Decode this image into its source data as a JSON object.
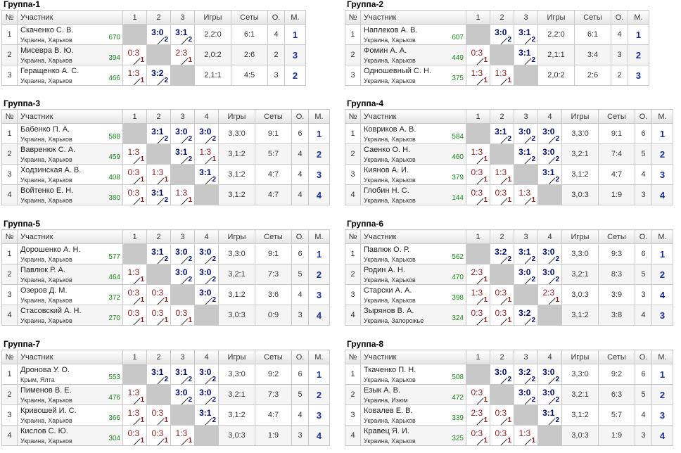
{
  "headers": {
    "num": "№",
    "participant": "Участник",
    "games": "Игры",
    "sets": "Сеты",
    "points": "О.",
    "place": "М."
  },
  "groups": [
    {
      "title": "Группа-1",
      "cols": [
        "1",
        "2",
        "3"
      ],
      "rows": [
        {
          "num": "1",
          "name": "Скаченко С. В.",
          "city": "Украина, Харьков",
          "rating": "670",
          "results": [
            null,
            {
              "score": "3:0",
              "res": "win",
              "pos": "2"
            },
            {
              "score": "3:1",
              "res": "win",
              "pos": "2"
            }
          ],
          "games": "2,2:0",
          "sets": "6:1",
          "points": "4",
          "place": "1"
        },
        {
          "num": "2",
          "name": "Мисевра В. Ю.",
          "city": "Украина, Харьков",
          "rating": "394",
          "results": [
            {
              "score": "0:3",
              "res": "loss",
              "pos": "1"
            },
            null,
            {
              "score": "2:3",
              "res": "loss",
              "pos": "1"
            }
          ],
          "games": "2,0:2",
          "sets": "2:6",
          "points": "2",
          "place": "3"
        },
        {
          "num": "3",
          "name": "Геращенко А. С.",
          "city": "Украина, Харьков",
          "rating": "466",
          "results": [
            {
              "score": "1:3",
              "res": "loss",
              "pos": "1"
            },
            {
              "score": "3:2",
              "res": "win",
              "pos": "2"
            },
            null
          ],
          "games": "2,1:1",
          "sets": "4:5",
          "points": "3",
          "place": "2"
        }
      ]
    },
    {
      "title": "Группа-2",
      "cols": [
        "1",
        "2",
        "3"
      ],
      "rows": [
        {
          "num": "1",
          "name": "Наплеков А. В.",
          "city": "Украина, Харьков",
          "rating": "607",
          "results": [
            null,
            {
              "score": "3:0",
              "res": "win",
              "pos": "2"
            },
            {
              "score": "3:1",
              "res": "win",
              "pos": "2"
            }
          ],
          "games": "2,2:0",
          "sets": "6:1",
          "points": "4",
          "place": "1"
        },
        {
          "num": "2",
          "name": "Фомин А. А.",
          "city": "Украина, Харьков",
          "rating": "449",
          "results": [
            {
              "score": "0:3",
              "res": "loss",
              "pos": "1"
            },
            null,
            {
              "score": "3:1",
              "res": "win",
              "pos": "2"
            }
          ],
          "games": "2,1:1",
          "sets": "3:4",
          "points": "3",
          "place": "2"
        },
        {
          "num": "3",
          "name": "Одношевный С. Н.",
          "city": "Украина, Харьков",
          "rating": "375",
          "results": [
            {
              "score": "1:3",
              "res": "loss",
              "pos": "1"
            },
            {
              "score": "1:3",
              "res": "loss",
              "pos": "1"
            },
            null
          ],
          "games": "2,0:2",
          "sets": "2:6",
          "points": "2",
          "place": "3"
        }
      ]
    },
    {
      "title": "Группа-3",
      "cols": [
        "1",
        "2",
        "3",
        "4"
      ],
      "rows": [
        {
          "num": "1",
          "name": "Бабенко П. А.",
          "city": "Украина, Харьков",
          "rating": "588",
          "results": [
            null,
            {
              "score": "3:1",
              "res": "win",
              "pos": "2"
            },
            {
              "score": "3:0",
              "res": "win",
              "pos": "2"
            },
            {
              "score": "3:0",
              "res": "win",
              "pos": "2"
            }
          ],
          "games": "3,3:0",
          "sets": "9:1",
          "points": "6",
          "place": "1"
        },
        {
          "num": "2",
          "name": "Вавренюк С. А.",
          "city": "Украина, Харьков",
          "rating": "459",
          "results": [
            {
              "score": "1:3",
              "res": "loss",
              "pos": "1"
            },
            null,
            {
              "score": "3:1",
              "res": "win",
              "pos": "2"
            },
            {
              "score": "1:3",
              "res": "loss",
              "pos": "1"
            }
          ],
          "games": "3,1:2",
          "sets": "5:7",
          "points": "4",
          "place": "2"
        },
        {
          "num": "3",
          "name": "Ходзинская А. В.",
          "city": "Украина, Харьков",
          "rating": "408",
          "results": [
            {
              "score": "0:3",
              "res": "loss",
              "pos": "1"
            },
            {
              "score": "1:3",
              "res": "loss",
              "pos": "1"
            },
            null,
            {
              "score": "3:1",
              "res": "win",
              "pos": "2"
            }
          ],
          "games": "3,1:2",
          "sets": "4:7",
          "points": "4",
          "place": "3"
        },
        {
          "num": "4",
          "name": "Войтенко Е. Н.",
          "city": "Украина, Харьков",
          "rating": "380",
          "results": [
            {
              "score": "0:3",
              "res": "loss",
              "pos": "1"
            },
            {
              "score": "3:1",
              "res": "win",
              "pos": "2"
            },
            {
              "score": "1:3",
              "res": "loss",
              "pos": "1"
            },
            null
          ],
          "games": "3,1:2",
          "sets": "4:7",
          "points": "4",
          "place": "4"
        }
      ]
    },
    {
      "title": "Группа-4",
      "cols": [
        "1",
        "2",
        "3",
        "4"
      ],
      "rows": [
        {
          "num": "1",
          "name": "Ковриков А. В.",
          "city": "Украина, Харьков",
          "rating": "584",
          "results": [
            null,
            {
              "score": "3:1",
              "res": "win",
              "pos": "2"
            },
            {
              "score": "3:0",
              "res": "win",
              "pos": "2"
            },
            {
              "score": "3:0",
              "res": "win",
              "pos": "2"
            }
          ],
          "games": "3,3:0",
          "sets": "9:1",
          "points": "6",
          "place": "1"
        },
        {
          "num": "2",
          "name": "Саенко О. Н.",
          "city": "Украина, Харьков",
          "rating": "460",
          "results": [
            {
              "score": "1:3",
              "res": "loss",
              "pos": "1"
            },
            null,
            {
              "score": "3:1",
              "res": "win",
              "pos": "2"
            },
            {
              "score": "3:0",
              "res": "win",
              "pos": "2"
            }
          ],
          "games": "3,2:1",
          "sets": "7:4",
          "points": "5",
          "place": "2"
        },
        {
          "num": "3",
          "name": "Киянов А. И.",
          "city": "Украина, Харьков",
          "rating": "379",
          "results": [
            {
              "score": "0:3",
              "res": "loss",
              "pos": "1"
            },
            {
              "score": "1:3",
              "res": "loss",
              "pos": "1"
            },
            null,
            {
              "score": "3:1",
              "res": "win",
              "pos": "2"
            }
          ],
          "games": "3,1:2",
          "sets": "4:7",
          "points": "4",
          "place": "3"
        },
        {
          "num": "4",
          "name": "Глобин Н. С.",
          "city": "Украина, Харьков",
          "rating": "144",
          "results": [
            {
              "score": "0:3",
              "res": "loss",
              "pos": "1"
            },
            {
              "score": "0:3",
              "res": "loss",
              "pos": "1"
            },
            {
              "score": "1:3",
              "res": "loss",
              "pos": "1"
            },
            null
          ],
          "games": "3,0:3",
          "sets": "1:9",
          "points": "3",
          "place": "4"
        }
      ]
    },
    {
      "title": "Группа-5",
      "cols": [
        "1",
        "2",
        "3",
        "4"
      ],
      "rows": [
        {
          "num": "1",
          "name": "Дорошенко А. Н.",
          "city": "Украина, Харьков",
          "rating": "577",
          "results": [
            null,
            {
              "score": "3:1",
              "res": "win",
              "pos": "2"
            },
            {
              "score": "3:0",
              "res": "win",
              "pos": "2"
            },
            {
              "score": "3:0",
              "res": "win",
              "pos": "2"
            }
          ],
          "games": "3,3:0",
          "sets": "9:1",
          "points": "6",
          "place": "1"
        },
        {
          "num": "2",
          "name": "Павлюк Р. А.",
          "city": "Украина, Харьков",
          "rating": "464",
          "results": [
            {
              "score": "1:3",
              "res": "loss",
              "pos": "1"
            },
            null,
            {
              "score": "3:0",
              "res": "win",
              "pos": "2"
            },
            {
              "score": "3:0",
              "res": "win",
              "pos": "2"
            }
          ],
          "games": "3,2:1",
          "sets": "7:3",
          "points": "5",
          "place": "2"
        },
        {
          "num": "3",
          "name": "Озеров Д. М.",
          "city": "Украина, Харьков",
          "rating": "372",
          "results": [
            {
              "score": "0:3",
              "res": "loss",
              "pos": "1"
            },
            {
              "score": "0:3",
              "res": "loss",
              "pos": "1"
            },
            null,
            {
              "score": "3:0",
              "res": "win",
              "pos": "2"
            }
          ],
          "games": "3,1:2",
          "sets": "3:6",
          "points": "4",
          "place": "3"
        },
        {
          "num": "4",
          "name": "Стасовский А. Н.",
          "city": "Украина, Харьков",
          "rating": "270",
          "results": [
            {
              "score": "0:3",
              "res": "loss",
              "pos": "1"
            },
            {
              "score": "0:3",
              "res": "loss",
              "pos": "1"
            },
            {
              "score": "0:3",
              "res": "loss",
              "pos": "1"
            },
            null
          ],
          "games": "3,0:3",
          "sets": "0:9",
          "points": "3",
          "place": "4"
        }
      ]
    },
    {
      "title": "Группа-6",
      "cols": [
        "1",
        "2",
        "3",
        "4"
      ],
      "rows": [
        {
          "num": "1",
          "name": "Павлюк О. Р.",
          "city": "Украина, Харьков",
          "rating": "562",
          "results": [
            null,
            {
              "score": "3:2",
              "res": "win",
              "pos": "2"
            },
            {
              "score": "3:1",
              "res": "win",
              "pos": "2"
            },
            {
              "score": "3:0",
              "res": "win",
              "pos": "2"
            }
          ],
          "games": "3,3:0",
          "sets": "9:3",
          "points": "6",
          "place": "1"
        },
        {
          "num": "2",
          "name": "Родин А. Н.",
          "city": "Украина, Харьков",
          "rating": "470",
          "results": [
            {
              "score": "2:3",
              "res": "loss",
              "pos": "1"
            },
            null,
            {
              "score": "3:0",
              "res": "win",
              "pos": "2"
            },
            {
              "score": "3:0",
              "res": "win",
              "pos": "2"
            }
          ],
          "games": "3,2:1",
          "sets": "8:3",
          "points": "5",
          "place": "2"
        },
        {
          "num": "3",
          "name": "Старски А. А.",
          "city": "Украина, Харьков",
          "rating": "398",
          "results": [
            {
              "score": "1:3",
              "res": "loss",
              "pos": "1"
            },
            {
              "score": "0:3",
              "res": "loss",
              "pos": "1"
            },
            null,
            {
              "score": "2:3",
              "res": "loss",
              "pos": "1"
            }
          ],
          "games": "3,0:3",
          "sets": "3:9",
          "points": "3",
          "place": "4"
        },
        {
          "num": "4",
          "name": "Зырянов В. А.",
          "city": "Украина, Запорожье",
          "rating": "324",
          "results": [
            {
              "score": "0:3",
              "res": "loss",
              "pos": "1"
            },
            {
              "score": "0:3",
              "res": "loss",
              "pos": "1"
            },
            {
              "score": "3:2",
              "res": "win",
              "pos": "2"
            },
            null
          ],
          "games": "3,1:2",
          "sets": "3:8",
          "points": "4",
          "place": "3"
        }
      ]
    },
    {
      "title": "Группа-7",
      "cols": [
        "1",
        "2",
        "3",
        "4"
      ],
      "rows": [
        {
          "num": "1",
          "name": "Дронова У. О.",
          "city": "Крым, Ялта",
          "rating": "553",
          "results": [
            null,
            {
              "score": "3:1",
              "res": "win",
              "pos": "2"
            },
            {
              "score": "3:1",
              "res": "win",
              "pos": "2"
            },
            {
              "score": "3:0",
              "res": "win",
              "pos": "2"
            }
          ],
          "games": "3,3:0",
          "sets": "9:2",
          "points": "6",
          "place": "1"
        },
        {
          "num": "2",
          "name": "Пименов В. Е.",
          "city": "Украина, Харьков",
          "rating": "476",
          "results": [
            {
              "score": "1:3",
              "res": "loss",
              "pos": "1"
            },
            null,
            {
              "score": "3:0",
              "res": "win",
              "pos": "2"
            },
            {
              "score": "3:0",
              "res": "win",
              "pos": "2"
            }
          ],
          "games": "3,2:1",
          "sets": "7:3",
          "points": "5",
          "place": "2"
        },
        {
          "num": "3",
          "name": "Кривошей И. С.",
          "city": "Украина, Харьков",
          "rating": "366",
          "results": [
            {
              "score": "1:3",
              "res": "loss",
              "pos": "1"
            },
            {
              "score": "0:3",
              "res": "loss",
              "pos": "1"
            },
            null,
            {
              "score": "3:1",
              "res": "win",
              "pos": "2"
            }
          ],
          "games": "3,1:2",
          "sets": "4:7",
          "points": "4",
          "place": "3"
        },
        {
          "num": "4",
          "name": "Кислов С. Ю.",
          "city": "Украина, Харьков",
          "rating": "304",
          "results": [
            {
              "score": "0:3",
              "res": "loss",
              "pos": "1"
            },
            {
              "score": "0:3",
              "res": "loss",
              "pos": "1"
            },
            {
              "score": "1:3",
              "res": "loss",
              "pos": "1"
            },
            null
          ],
          "games": "3,0:3",
          "sets": "1:9",
          "points": "3",
          "place": "4"
        }
      ]
    },
    {
      "title": "Группа-8",
      "cols": [
        "1",
        "2",
        "3",
        "4"
      ],
      "rows": [
        {
          "num": "1",
          "name": "Ткаченко П. Н.",
          "city": "Украина, Харьков",
          "rating": "508",
          "results": [
            null,
            {
              "score": "3:0",
              "res": "win",
              "pos": "2"
            },
            {
              "score": "3:2",
              "res": "win",
              "pos": "2"
            },
            {
              "score": "3:0",
              "res": "win",
              "pos": "2"
            }
          ],
          "games": "3,3:0",
          "sets": "9:2",
          "points": "6",
          "place": "1"
        },
        {
          "num": "2",
          "name": "Езык А. В.",
          "city": "Украина, Изюм",
          "rating": "472",
          "results": [
            {
              "score": "0:3",
              "res": "loss",
              "pos": "1"
            },
            null,
            {
              "score": "3:0",
              "res": "win",
              "pos": "2"
            },
            {
              "score": "3:0",
              "res": "win",
              "pos": "2"
            }
          ],
          "games": "3,2:1",
          "sets": "6:3",
          "points": "5",
          "place": "2"
        },
        {
          "num": "3",
          "name": "Ковалев Е. В.",
          "city": "Украина, Харьков",
          "rating": "339",
          "results": [
            {
              "score": "2:3",
              "res": "loss",
              "pos": "1"
            },
            {
              "score": "0:3",
              "res": "loss",
              "pos": "1"
            },
            null,
            {
              "score": "3:1",
              "res": "win",
              "pos": "2"
            }
          ],
          "games": "3,1:2",
          "sets": "5:7",
          "points": "4",
          "place": "3"
        },
        {
          "num": "4",
          "name": "Кравец Я. И.",
          "city": "Украина, Харьков",
          "rating": "325",
          "results": [
            {
              "score": "0:3",
              "res": "loss",
              "pos": "1"
            },
            {
              "score": "0:3",
              "res": "loss",
              "pos": "1"
            },
            {
              "score": "1:3",
              "res": "loss",
              "pos": "1"
            },
            null
          ],
          "games": "3,0:3",
          "sets": "1:9",
          "points": "3",
          "place": "4"
        }
      ]
    }
  ]
}
